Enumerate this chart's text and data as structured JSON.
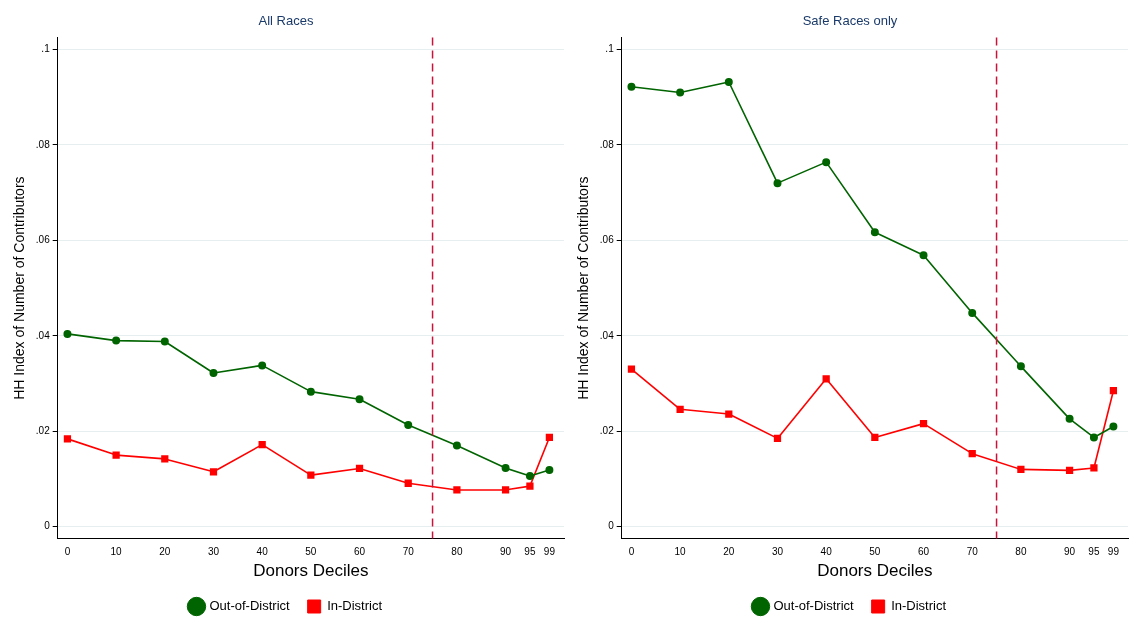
{
  "chart_data": [
    {
      "type": "line",
      "title": "All Races",
      "xlabel": "Donors Deciles",
      "ylabel": "HH Index of Number of Contributors",
      "x": [
        0,
        10,
        20,
        30,
        40,
        50,
        60,
        70,
        80,
        90,
        95,
        99
      ],
      "series": [
        {
          "name": "Out-of-District",
          "color": "#006400",
          "marker": "circle",
          "values": [
            0.0404,
            0.039,
            0.0388,
            0.0322,
            0.0338,
            0.0283,
            0.0267,
            0.0213,
            0.017,
            0.0123,
            0.0106,
            0.0119
          ]
        },
        {
          "name": "In-District",
          "color": "#ff0000",
          "marker": "square",
          "values": [
            0.0184,
            0.015,
            0.0142,
            0.0115,
            0.0172,
            0.0108,
            0.0122,
            0.0091,
            0.0077,
            0.0077,
            0.0085,
            0.0187
          ]
        }
      ],
      "xlim": [
        -2,
        102
      ],
      "xticks": [
        0,
        10,
        20,
        30,
        40,
        50,
        60,
        70,
        80,
        90,
        95,
        99
      ],
      "ylim": [
        -0.0025,
        0.1025
      ],
      "yticks": [
        {
          "value": 0,
          "label": "0"
        },
        {
          "value": 0.02,
          "label": ".02"
        },
        {
          "value": 0.04,
          "label": ".04"
        },
        {
          "value": 0.06,
          "label": ".06"
        },
        {
          "value": 0.08,
          "label": ".08"
        },
        {
          "value": 0.1,
          "label": ".1"
        }
      ],
      "ref_lines": [
        {
          "axis": "x",
          "value": 75,
          "color": "#c8143c",
          "line_style": "dashed"
        }
      ],
      "grid": "y",
      "legend": "bottom",
      "line_style": "solid"
    },
    {
      "type": "line",
      "title": "Safe Races only",
      "xlabel": "Donors Deciles",
      "ylabel": "HH Index of Number of Contributors",
      "x": [
        0,
        10,
        20,
        30,
        40,
        50,
        60,
        70,
        80,
        90,
        95,
        99
      ],
      "series": [
        {
          "name": "Out-of-District",
          "color": "#006400",
          "marker": "circle",
          "values": [
            0.0922,
            0.091,
            0.0932,
            0.072,
            0.0764,
            0.0617,
            0.0569,
            0.0448,
            0.0336,
            0.0226,
            0.0187,
            0.021
          ]
        },
        {
          "name": "In-District",
          "color": "#ff0000",
          "marker": "square",
          "values": [
            0.033,
            0.0246,
            0.0236,
            0.0185,
            0.031,
            0.0187,
            0.0216,
            0.0153,
            0.012,
            0.0118,
            0.0123,
            0.0285
          ]
        }
      ],
      "xlim": [
        -2,
        102
      ],
      "xticks": [
        0,
        10,
        20,
        30,
        40,
        50,
        60,
        70,
        80,
        90,
        95,
        99
      ],
      "ylim": [
        -0.0025,
        0.1025
      ],
      "yticks": [
        {
          "value": 0,
          "label": "0"
        },
        {
          "value": 0.02,
          "label": ".02"
        },
        {
          "value": 0.04,
          "label": ".04"
        },
        {
          "value": 0.06,
          "label": ".06"
        },
        {
          "value": 0.08,
          "label": ".08"
        },
        {
          "value": 0.1,
          "label": ".1"
        }
      ],
      "ref_lines": [
        {
          "axis": "x",
          "value": 75,
          "color": "#c8143c",
          "line_style": "dashed"
        }
      ],
      "grid": "y",
      "legend": "bottom",
      "line_style": "solid"
    }
  ]
}
